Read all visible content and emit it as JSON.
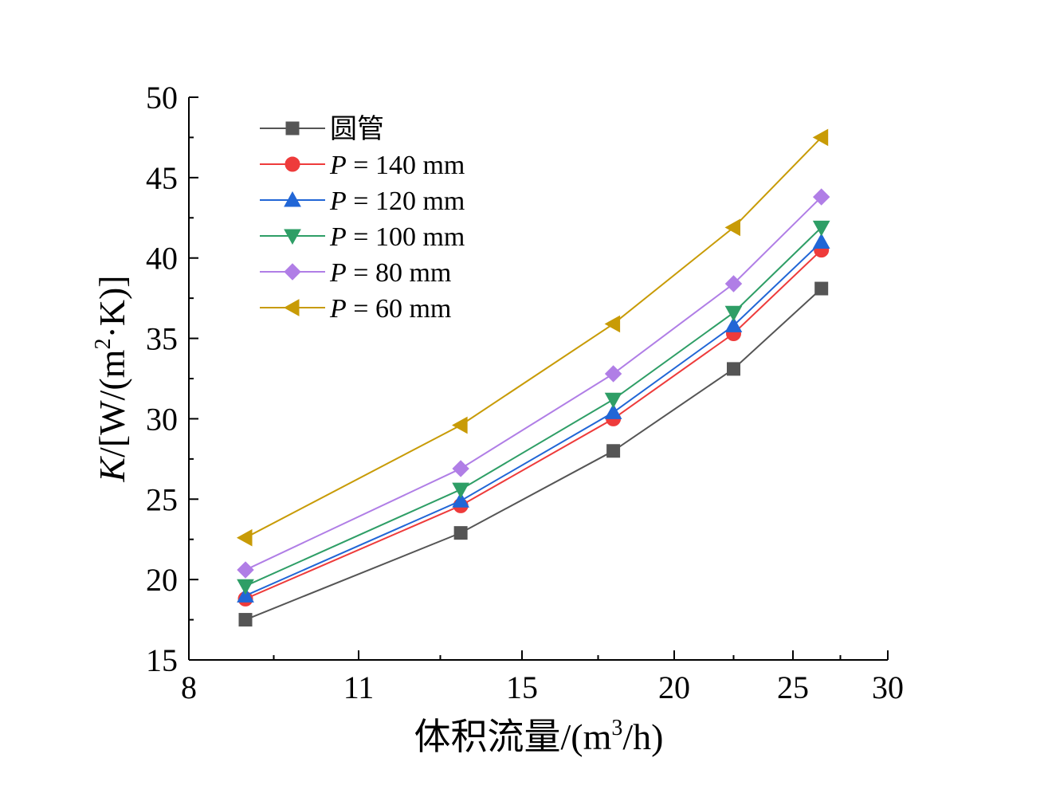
{
  "chart_data": {
    "type": "line",
    "xlabel": "体积流量/(m³/h)",
    "xlabel_parts": {
      "main": "体积流量/(m",
      "sup": "3",
      "tail": "/h)"
    },
    "ylabel": "K/[W/(m²·K)]",
    "ylabel_parts": {
      "italic": "K",
      "a": "/[W/(m",
      "sup": "2",
      "b": "·K)]"
    },
    "x_ticks": [
      {
        "value": 8,
        "label": "8"
      },
      {
        "value": 11,
        "label": "11"
      },
      {
        "value": 15,
        "label": "15"
      },
      {
        "value": 20,
        "label": "20"
      },
      {
        "value": 25,
        "label": "25"
      },
      {
        "value": 30,
        "label": "30"
      }
    ],
    "y_ticks": [
      15,
      20,
      25,
      30,
      35,
      40,
      45,
      50
    ],
    "ylim": [
      15,
      50
    ],
    "x": [
      9,
      13.5,
      18,
      22.5,
      26.5
    ],
    "legend_position": "top-left",
    "series": [
      {
        "name": "圆管",
        "name_italic": "",
        "name_rest": "圆管",
        "color": "#555555",
        "marker": "square",
        "values": [
          17.5,
          22.9,
          28.0,
          33.1,
          38.1
        ]
      },
      {
        "name": "P = 140 mm",
        "name_italic": "P",
        "name_rest": " = 140 mm",
        "color": "#ee3b3b",
        "marker": "circle",
        "values": [
          18.8,
          24.6,
          30.0,
          35.3,
          40.5
        ]
      },
      {
        "name": "P = 120 mm",
        "name_italic": "P",
        "name_rest": " = 120 mm",
        "color": "#2166d6",
        "marker": "triangle-up",
        "values": [
          19.0,
          24.9,
          30.4,
          35.8,
          41.0
        ]
      },
      {
        "name": "P = 100 mm",
        "name_italic": "P",
        "name_rest": " = 100 mm",
        "color": "#2e9e66",
        "marker": "triangle-down",
        "values": [
          19.6,
          25.6,
          31.2,
          36.6,
          41.9
        ]
      },
      {
        "name": "P = 80 mm",
        "name_italic": "P",
        "name_rest": " = 80 mm",
        "color": "#b07ee6",
        "marker": "diamond",
        "values": [
          20.6,
          26.9,
          32.8,
          38.4,
          43.8
        ]
      },
      {
        "name": "P = 60 mm",
        "name_italic": "P",
        "name_rest": " = 60 mm",
        "color": "#c89b06",
        "marker": "triangle-left",
        "values": [
          22.6,
          29.6,
          35.9,
          41.9,
          47.5
        ]
      }
    ]
  }
}
